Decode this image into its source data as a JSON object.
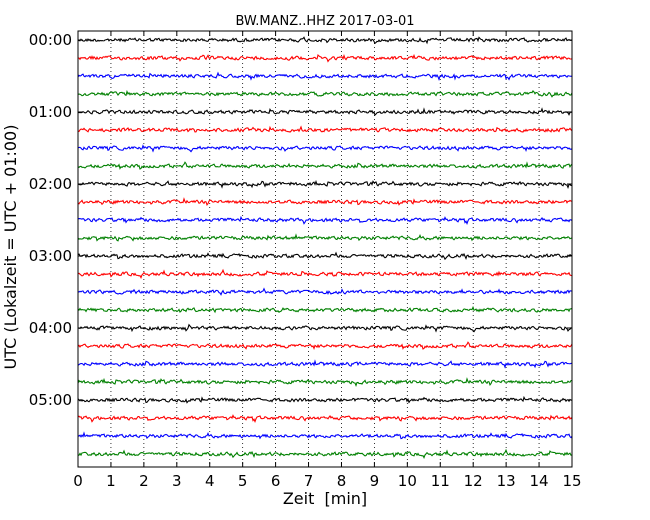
{
  "chart_data": {
    "type": "line",
    "title": "BW.MANZ..HHZ 2017-03-01",
    "xlabel": "Zeit  [min]",
    "ylabel": "UTC (Lokalzeit = UTC + 01:00)",
    "xlim": [
      0,
      15
    ],
    "x_ticks": [
      "0",
      "1",
      "2",
      "3",
      "4",
      "5",
      "6",
      "7",
      "8",
      "9",
      "10",
      "11",
      "12",
      "13",
      "14",
      "15"
    ],
    "y_ticks": [
      "00:00",
      "01:00",
      "02:00",
      "03:00",
      "04:00",
      "05:00"
    ],
    "traces_per_hour": 4,
    "trace_count": 24,
    "trace_colors": [
      "#000000",
      "#ff0000",
      "#0000ff",
      "#008000"
    ],
    "grid": "vertical dotted at each minute"
  }
}
